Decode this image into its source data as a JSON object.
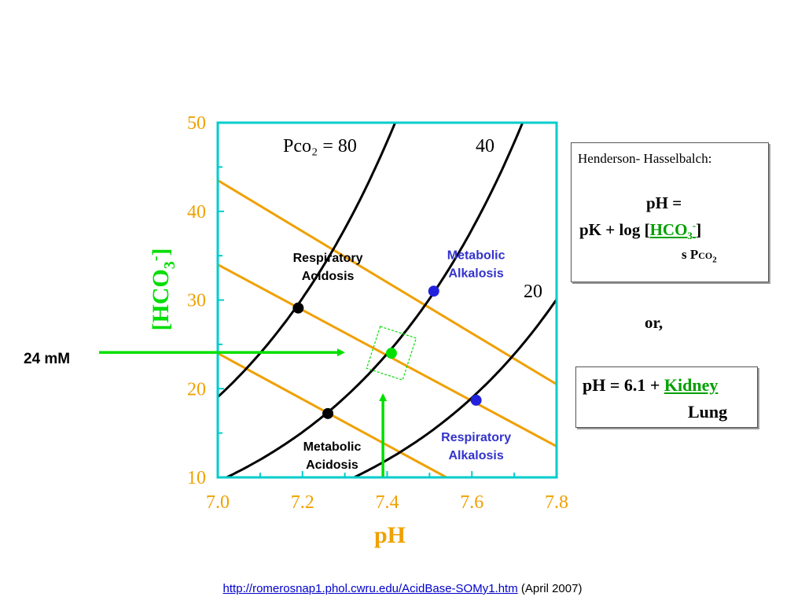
{
  "chart_data": {
    "type": "line",
    "xlabel": "pH",
    "ylabel": "[HCO3-]",
    "xlim": [
      7.0,
      7.8
    ],
    "ylim": [
      10,
      50
    ],
    "x_ticks": [
      "7.0",
      "7.2",
      "7.4",
      "7.6",
      "7.8"
    ],
    "y_ticks": [
      "10",
      "20",
      "30",
      "40",
      "50"
    ],
    "pco2_label_prefix": "Pco₂ = ",
    "pco2_curves": [
      {
        "pco2": 80,
        "label": "80"
      },
      {
        "pco2": 40,
        "label": "40"
      },
      {
        "pco2": 20,
        "label": "20"
      }
    ],
    "buffer_lines": [
      {
        "start": [
          7.0,
          43.5
        ],
        "end": [
          7.8,
          20.5
        ]
      },
      {
        "start": [
          7.0,
          34.0
        ],
        "end": [
          7.8,
          13.5
        ]
      },
      {
        "start": [
          7.0,
          24.0
        ],
        "end": [
          7.54,
          10.0
        ]
      }
    ],
    "points": [
      {
        "x": 7.19,
        "y": 29.1,
        "color": "#000000"
      },
      {
        "x": 7.26,
        "y": 17.2,
        "color": "#000000"
      },
      {
        "x": 7.41,
        "y": 24.0,
        "color": "#00e000"
      },
      {
        "x": 7.51,
        "y": 31.0,
        "color": "#2222dd"
      },
      {
        "x": 7.61,
        "y": 18.7,
        "color": "#2222dd"
      }
    ],
    "regions": [
      {
        "line1": "Respiratory",
        "line2": "Acidosis",
        "x": 7.26,
        "y": 34.3,
        "color": "#000000"
      },
      {
        "line1": "Metabolic",
        "line2": "Alkalosis",
        "x": 7.61,
        "y": 34.6,
        "color": "#3333cc"
      },
      {
        "line1": "Metabolic",
        "line2": "Acidosis",
        "x": 7.27,
        "y": 13.0,
        "color": "#000000"
      },
      {
        "line1": "Respiratory",
        "line2": "Alkalosis",
        "x": 7.61,
        "y": 14.1,
        "color": "#3333cc"
      }
    ],
    "annotation": {
      "text": "24 mM",
      "y": 24.0
    },
    "highlight_x": 7.39,
    "colors": {
      "axis": "#00cccc",
      "ticks": "#f0a000",
      "ylabel": "#00dd00",
      "buffer": "#f0a000",
      "curve": "#000000",
      "arrow": "#00e000"
    }
  },
  "hh": {
    "title": "Henderson- Hasselbalch:",
    "line1": "pH =",
    "line2_prefix": "pK  +  log  [",
    "line2_num": "HCO",
    "line2_sub": "3",
    "line2_sup": "-",
    "line2_suffix": "]",
    "line3_prefix": "s P",
    "line3_co": "co",
    "line3_sub": "2"
  },
  "or_text": "or,",
  "kl": {
    "line1_prefix": "pH = 6.1 + ",
    "line1_kidney": "Kidney",
    "line2": "Lung"
  },
  "footer": {
    "link": "http://romerosnap1.phol.cwru.edu/AcidBase-SOMy1.htm",
    "suffix": " (April 2007)"
  }
}
